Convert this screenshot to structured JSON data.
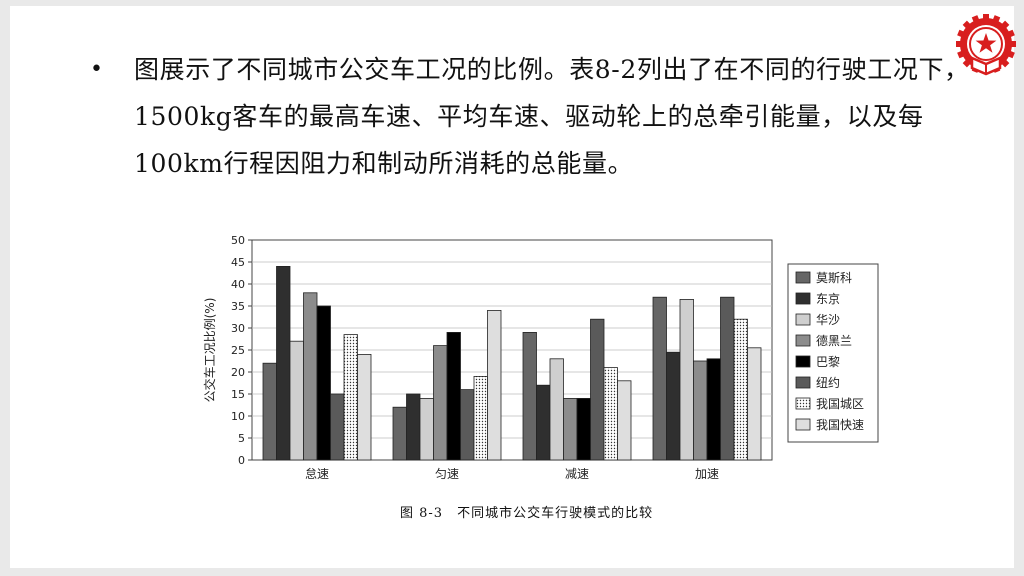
{
  "slide": {
    "bullet_text": "图展示了不同城市公交车工况的比例。表8-2列出了在不同的行驶工况下，1500kg客车的最高车速、平均车速、驱动轮上的总牵引能量，以及每100km行程因阻力和制动所消耗的总能量。",
    "caption": "图 8-3　不同城市公交车行驶模式的比较"
  },
  "icons": {
    "emblem": "university-emblem-icon",
    "bullet": "bullet-dot-icon"
  },
  "chart_data": {
    "type": "bar",
    "categories": [
      "怠速",
      "匀速",
      "减速",
      "加速"
    ],
    "ylabel": "公交车工况比例(%)",
    "xlabel": "",
    "title": "",
    "ylim": [
      0,
      50
    ],
    "yticks": [
      0,
      5,
      10,
      15,
      20,
      25,
      30,
      35,
      40,
      45,
      50
    ],
    "grid": true,
    "legend_position": "right",
    "series": [
      {
        "name": "莫斯科",
        "color": "#666666",
        "pattern": "solid",
        "values": [
          22,
          12,
          29,
          37
        ]
      },
      {
        "name": "东京",
        "color": "#2f2f2f",
        "pattern": "solid",
        "values": [
          44,
          15,
          17,
          24.5
        ]
      },
      {
        "name": "华沙",
        "color": "#cfcfcf",
        "pattern": "solid",
        "values": [
          27,
          14,
          23,
          36.5
        ]
      },
      {
        "name": "德黑兰",
        "color": "#8c8c8c",
        "pattern": "solid",
        "values": [
          38,
          26,
          14,
          22.5
        ]
      },
      {
        "name": "巴黎",
        "color": "#000000",
        "pattern": "solid",
        "values": [
          35,
          29,
          14,
          23
        ]
      },
      {
        "name": "纽约",
        "color": "#5a5a5a",
        "pattern": "solid",
        "values": [
          15,
          16,
          32,
          37
        ]
      },
      {
        "name": "我国城区",
        "color": "#ffffff",
        "pattern": "dots",
        "values": [
          28.5,
          19,
          21,
          32
        ]
      },
      {
        "name": "我国快速",
        "color": "#dedede",
        "pattern": "solid",
        "values": [
          24,
          34,
          18,
          25.5
        ]
      }
    ]
  }
}
